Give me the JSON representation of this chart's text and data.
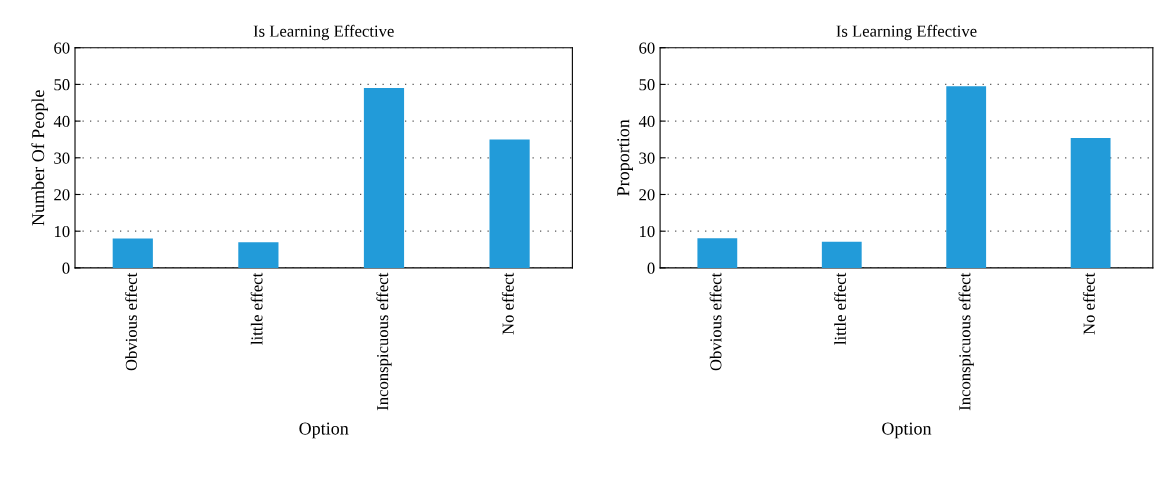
{
  "chart_data": [
    {
      "type": "bar",
      "title": "Is Learning Effective",
      "xlabel": "Option",
      "ylabel": "Number Of People",
      "categories": [
        "Obvious effect",
        "little effect",
        "Inconspicuous effect",
        "No effect"
      ],
      "values": [
        8,
        7,
        49,
        35
      ],
      "color": "#229bd9",
      "ylim": [
        0,
        60
      ],
      "yticks": [
        0,
        10,
        20,
        30,
        40,
        50,
        60
      ],
      "grid": "y"
    },
    {
      "type": "bar",
      "title": "Is Learning Effective",
      "xlabel": "Option",
      "ylabel": "Proportion",
      "categories": [
        "Obvious effect",
        "little effect",
        "Inconspicuous effect",
        "No effect"
      ],
      "values": [
        8.1,
        7.1,
        49.5,
        35.4
      ],
      "color": "#229bd9",
      "ylim": [
        0,
        60
      ],
      "yticks": [
        0,
        10,
        20,
        30,
        40,
        50,
        60
      ],
      "grid": "y"
    }
  ]
}
